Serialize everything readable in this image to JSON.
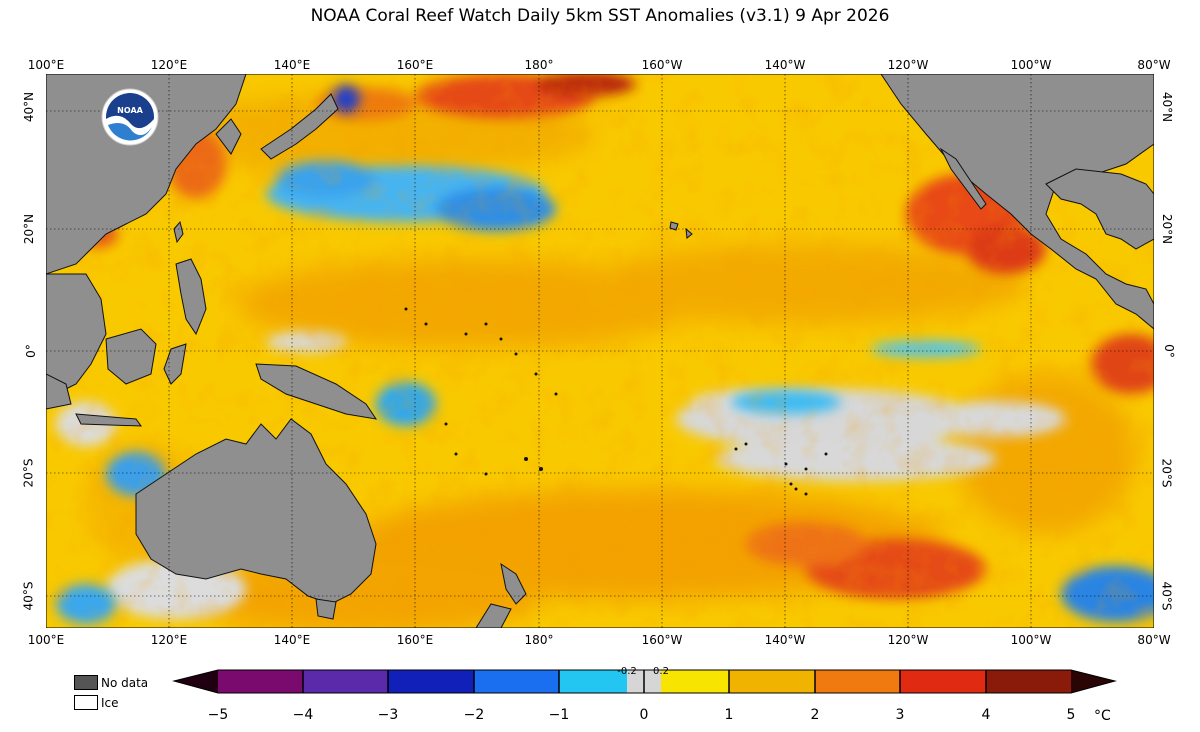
{
  "title": "NOAA Coral Reef Watch Daily 5km SST Anomalies  (v3.1)   9 Apr 2026",
  "logo_text": "NOAA",
  "longitude_labels": [
    "100°E",
    "120°E",
    "140°E",
    "160°E",
    "180°",
    "160°W",
    "140°W",
    "120°W",
    "100°W",
    "80°W"
  ],
  "latitude_labels": [
    "40°N",
    "20°N",
    "0°",
    "20°S",
    "40°S"
  ],
  "legend": {
    "no_data": "No data",
    "ice": "Ice"
  },
  "colorbar": {
    "ticks": [
      "−5",
      "−4",
      "−3",
      "−2",
      "−1",
      "0",
      "1",
      "2",
      "3",
      "4",
      "5"
    ],
    "small_ticks": [
      "-0.2",
      "0.2"
    ],
    "unit": "°C"
  },
  "colors": {
    "land": "#8f8f8f",
    "neutral": "#d8d8d8",
    "warm": "#f5b800",
    "hot": "#e9441c",
    "cool": "#36b3f0",
    "cold": "#1f57d8"
  }
}
